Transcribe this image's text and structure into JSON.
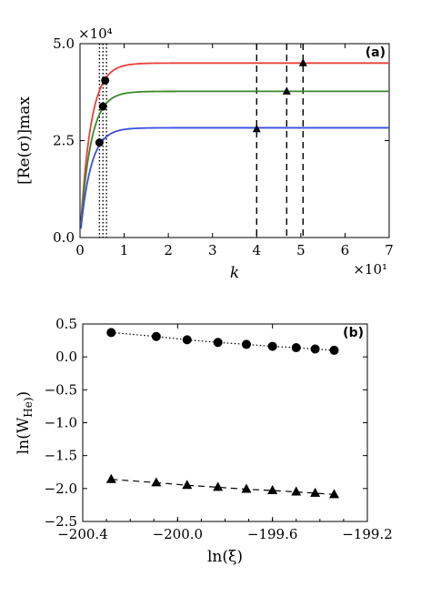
{
  "chart_data": [
    {
      "type": "line",
      "panel_label": "(a)",
      "xlabel": "k",
      "ylabel": "[Re(σ)]max",
      "x_multiplier": "×10¹",
      "y_multiplier": "×10⁴",
      "xlim": [
        0,
        7
      ],
      "ylim": [
        0,
        5
      ],
      "x_ticks": [
        "0",
        "1",
        "2",
        "3",
        "4",
        "5",
        "6",
        "7"
      ],
      "y_ticks": [
        "0.0",
        "2.5",
        "5.0"
      ],
      "series": [
        {
          "color": "#e8413a",
          "plateau": 4.5,
          "rate": 4.2,
          "marker_dot": [
            0.57,
            4.05
          ],
          "marker_tri": [
            5.05,
            4.5
          ]
        },
        {
          "color": "#3a8a2a",
          "plateau": 3.77,
          "rate": 4.2,
          "marker_dot": [
            0.52,
            3.38
          ],
          "marker_tri": [
            4.68,
            3.77
          ]
        },
        {
          "color": "#3a4fe0",
          "plateau": 2.83,
          "rate": 4.2,
          "marker_dot": [
            0.44,
            2.45
          ],
          "marker_tri": [
            4.0,
            2.8
          ]
        }
      ],
      "dotted_vlines": [
        0.44,
        0.52,
        0.6
      ],
      "dashed_vlines": [
        4.0,
        4.68,
        5.05
      ]
    },
    {
      "type": "scatter",
      "panel_label": "(b)",
      "xlabel": "ln(ξ)",
      "ylabel": "ln(W He)",
      "xlim": [
        -200.4,
        -199.2
      ],
      "ylim": [
        -2.5,
        0.5
      ],
      "x_ticks": [
        "−200.4",
        "−200.0",
        "−199.6",
        "−199.2"
      ],
      "y_ticks": [
        "0.5",
        "0.0",
        "−0.5",
        "−1.0",
        "−1.5",
        "−2.0",
        "−2.5"
      ],
      "series": [
        {
          "marker": "circle",
          "linestyle": "dotted",
          "x": [
            -200.28,
            -200.09,
            -199.96,
            -199.83,
            -199.71,
            -199.6,
            -199.5,
            -199.42,
            -199.34
          ],
          "y": [
            0.37,
            0.31,
            0.26,
            0.22,
            0.19,
            0.16,
            0.14,
            0.12,
            0.1
          ]
        },
        {
          "marker": "triangle",
          "linestyle": "dashed",
          "x": [
            -200.28,
            -200.09,
            -199.96,
            -199.83,
            -199.71,
            -199.6,
            -199.5,
            -199.42,
            -199.34
          ],
          "y": [
            -1.86,
            -1.91,
            -1.95,
            -1.98,
            -2.01,
            -2.03,
            -2.05,
            -2.07,
            -2.09
          ]
        }
      ]
    }
  ]
}
